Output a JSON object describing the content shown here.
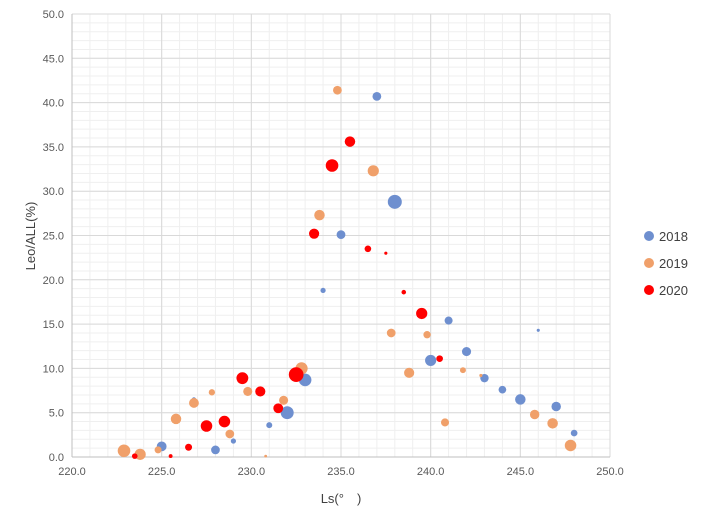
{
  "chart_data": {
    "type": "scatter",
    "title": "",
    "xlabel": "Ls(°　)",
    "ylabel": "Leo/ALL(%)",
    "xlim": [
      220,
      250
    ],
    "ylim": [
      0,
      50
    ],
    "x_ticks": [
      "220.0",
      "225.0",
      "230.0",
      "235.0",
      "240.0",
      "245.0",
      "250.0"
    ],
    "y_ticks": [
      "0.0",
      "5.0",
      "10.0",
      "15.0",
      "20.0",
      "25.0",
      "30.0",
      "35.0",
      "40.0",
      "45.0",
      "50.0"
    ],
    "minor_gridlines": true,
    "legend_position": "right",
    "series": [
      {
        "name": "2018",
        "color": "#6e8fcf",
        "points": [
          {
            "x": 225.0,
            "y": 1.2,
            "size": 2.8
          },
          {
            "x": 226.8,
            "y": 6.5,
            "size": 1.2
          },
          {
            "x": 228.0,
            "y": 0.8,
            "size": 2.5
          },
          {
            "x": 229.0,
            "y": 1.8,
            "size": 1.5
          },
          {
            "x": 231.0,
            "y": 3.6,
            "size": 1.7
          },
          {
            "x": 232.0,
            "y": 5.0,
            "size": 3.7
          },
          {
            "x": 233.0,
            "y": 8.7,
            "size": 3.6
          },
          {
            "x": 234.0,
            "y": 18.8,
            "size": 1.5
          },
          {
            "x": 235.0,
            "y": 25.1,
            "size": 2.5
          },
          {
            "x": 237.0,
            "y": 40.7,
            "size": 2.5
          },
          {
            "x": 238.0,
            "y": 28.8,
            "size": 4.0
          },
          {
            "x": 240.0,
            "y": 10.9,
            "size": 3.2
          },
          {
            "x": 241.0,
            "y": 15.4,
            "size": 2.3
          },
          {
            "x": 242.0,
            "y": 11.9,
            "size": 2.6
          },
          {
            "x": 243.0,
            "y": 8.9,
            "size": 2.4
          },
          {
            "x": 244.0,
            "y": 7.6,
            "size": 2.2
          },
          {
            "x": 245.0,
            "y": 6.5,
            "size": 3.0
          },
          {
            "x": 246.0,
            "y": 14.3,
            "size": 0.9
          },
          {
            "x": 247.0,
            "y": 5.7,
            "size": 2.7
          },
          {
            "x": 248.0,
            "y": 2.7,
            "size": 1.9
          }
        ]
      },
      {
        "name": "2019",
        "color": "#f0a06a",
        "points": [
          {
            "x": 222.9,
            "y": 0.7,
            "size": 3.6
          },
          {
            "x": 223.8,
            "y": 0.3,
            "size": 3.2
          },
          {
            "x": 224.8,
            "y": 0.8,
            "size": 2.0
          },
          {
            "x": 225.8,
            "y": 4.3,
            "size": 3.0
          },
          {
            "x": 226.8,
            "y": 6.1,
            "size": 2.8
          },
          {
            "x": 227.8,
            "y": 7.3,
            "size": 1.8
          },
          {
            "x": 228.8,
            "y": 2.6,
            "size": 2.5
          },
          {
            "x": 229.8,
            "y": 7.4,
            "size": 2.6
          },
          {
            "x": 230.8,
            "y": 0.1,
            "size": 0.8
          },
          {
            "x": 231.8,
            "y": 6.4,
            "size": 2.6
          },
          {
            "x": 232.8,
            "y": 10.0,
            "size": 3.5
          },
          {
            "x": 233.8,
            "y": 27.3,
            "size": 3.0
          },
          {
            "x": 234.8,
            "y": 41.4,
            "size": 2.5
          },
          {
            "x": 236.8,
            "y": 32.3,
            "size": 3.2
          },
          {
            "x": 237.8,
            "y": 14.0,
            "size": 2.5
          },
          {
            "x": 238.8,
            "y": 9.5,
            "size": 2.9
          },
          {
            "x": 239.8,
            "y": 13.8,
            "size": 2.1
          },
          {
            "x": 240.8,
            "y": 3.9,
            "size": 2.3
          },
          {
            "x": 241.8,
            "y": 9.8,
            "size": 1.7
          },
          {
            "x": 242.8,
            "y": 9.2,
            "size": 0.9
          },
          {
            "x": 245.8,
            "y": 4.8,
            "size": 2.7
          },
          {
            "x": 246.8,
            "y": 3.8,
            "size": 3.0
          },
          {
            "x": 247.8,
            "y": 1.3,
            "size": 3.3
          }
        ]
      },
      {
        "name": "2020",
        "color": "#ff0000",
        "points": [
          {
            "x": 223.5,
            "y": 0.1,
            "size": 1.6
          },
          {
            "x": 225.5,
            "y": 0.1,
            "size": 1.1
          },
          {
            "x": 226.5,
            "y": 1.1,
            "size": 2.0
          },
          {
            "x": 227.5,
            "y": 3.5,
            "size": 3.3
          },
          {
            "x": 228.5,
            "y": 4.0,
            "size": 3.3
          },
          {
            "x": 229.5,
            "y": 8.9,
            "size": 3.4
          },
          {
            "x": 230.5,
            "y": 7.4,
            "size": 2.9
          },
          {
            "x": 231.5,
            "y": 5.5,
            "size": 2.8
          },
          {
            "x": 232.5,
            "y": 9.3,
            "size": 4.2
          },
          {
            "x": 233.5,
            "y": 25.2,
            "size": 2.9
          },
          {
            "x": 234.5,
            "y": 32.9,
            "size": 3.6
          },
          {
            "x": 235.5,
            "y": 35.6,
            "size": 3.0
          },
          {
            "x": 236.5,
            "y": 23.5,
            "size": 1.9
          },
          {
            "x": 237.5,
            "y": 23.0,
            "size": 0.9
          },
          {
            "x": 238.5,
            "y": 18.6,
            "size": 1.3
          },
          {
            "x": 239.5,
            "y": 16.2,
            "size": 3.2
          },
          {
            "x": 240.5,
            "y": 11.1,
            "size": 1.9
          }
        ]
      }
    ]
  }
}
